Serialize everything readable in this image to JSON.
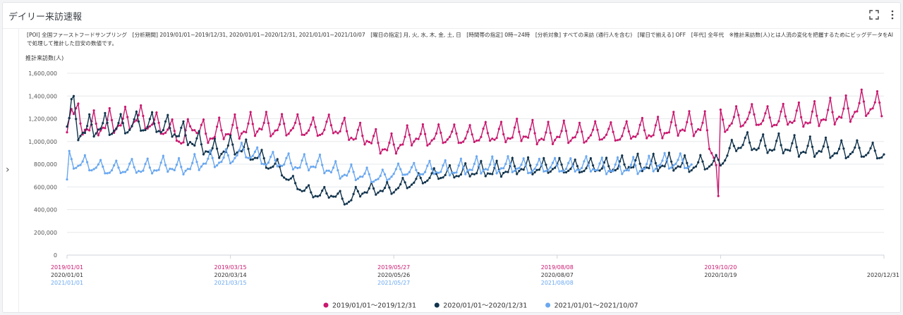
{
  "widget": {
    "title": "デイリー来訪速報",
    "description": "[POI] 全国ファーストフードサンプリング　[分析期間] 2019/01/01~2019/12/31, 2020/01/01~2020/12/31, 2021/01/01~2021/10/07　[曜日の指定] 月, 火, 水, 木, 金, 土, 日　[時間帯の指定] 0時~24時　[分析対象] すべての来訪 (通行人を含む)　[曜日で揃える] OFF　[年代] 全年代　※推計来訪数(人)とは人流の変化を把握するためにビッグデータをAIで処理して推計した目安の数値です。",
    "icons": {
      "expand": "expand-icon",
      "menu": "more-vertical-icon",
      "sidebar": "chevron-right-icon"
    }
  },
  "chart_data": {
    "type": "line",
    "ylabel": "推計来訪数(人)",
    "ylim": [
      0,
      1600000
    ],
    "yticks": [
      0,
      200000,
      400000,
      600000,
      800000,
      1000000,
      1200000,
      1400000,
      1600000
    ],
    "ytick_labels": [
      "0",
      "200,000",
      "400,000",
      "600,000",
      "800,000",
      "1,000,000",
      "1,200,000",
      "1,400,000",
      "1,600,000"
    ],
    "xlim": [
      0,
      365
    ],
    "x_ticks": [
      {
        "day": 0,
        "labels": [
          "2019/01/01",
          "2020/01/01",
          "2021/01/01"
        ]
      },
      {
        "day": 73,
        "labels": [
          "2019/03/15",
          "2020/03/14",
          "2021/03/15"
        ]
      },
      {
        "day": 146,
        "labels": [
          "2019/05/27",
          "2020/05/26",
          "2021/05/27"
        ]
      },
      {
        "day": 219,
        "labels": [
          "2019/08/08",
          "2020/08/07",
          "2021/08/08"
        ]
      },
      {
        "day": 292,
        "labels": [
          "2019/10/20",
          "2020/10/19",
          ""
        ]
      },
      {
        "day": 365,
        "labels": [
          "",
          "2020/12/31",
          ""
        ]
      }
    ],
    "weekly_pattern": [
      -0.06,
      -0.04,
      -0.03,
      -0.02,
      0.04,
      0.11,
      0.02
    ],
    "series": [
      {
        "name": "2019/01/01～2019/12/31",
        "color": "#c8186f",
        "n_days": 365,
        "knots": [
          [
            0,
            1140000
          ],
          [
            2,
            1320000
          ],
          [
            6,
            1150000
          ],
          [
            15,
            1130000
          ],
          [
            30,
            1200000
          ],
          [
            45,
            1120000
          ],
          [
            52,
            1000000
          ],
          [
            56,
            1160000
          ],
          [
            63,
            1050000
          ],
          [
            75,
            1110000
          ],
          [
            90,
            1130000
          ],
          [
            100,
            1120000
          ],
          [
            110,
            1110000
          ],
          [
            120,
            1120000
          ],
          [
            135,
            1020000
          ],
          [
            140,
            960000
          ],
          [
            146,
            960000
          ],
          [
            155,
            1040000
          ],
          [
            170,
            1040000
          ],
          [
            185,
            1050000
          ],
          [
            200,
            1070000
          ],
          [
            215,
            1050000
          ],
          [
            230,
            1060000
          ],
          [
            250,
            1070000
          ],
          [
            265,
            1100000
          ],
          [
            280,
            1140000
          ],
          [
            285,
            1130000
          ],
          [
            290,
            800000
          ],
          [
            291,
            520000
          ],
          [
            292,
            1150000
          ],
          [
            300,
            1200000
          ],
          [
            320,
            1200000
          ],
          [
            340,
            1220000
          ],
          [
            355,
            1300000
          ],
          [
            365,
            1310000
          ]
        ]
      },
      {
        "name": "2020/01/01～2020/12/31",
        "color": "#12344d",
        "n_days": 366,
        "knots": [
          [
            0,
            1150000
          ],
          [
            2,
            1330000
          ],
          [
            5,
            1100000
          ],
          [
            20,
            1130000
          ],
          [
            40,
            1150000
          ],
          [
            55,
            1030000
          ],
          [
            65,
            900000
          ],
          [
            75,
            960000
          ],
          [
            85,
            860000
          ],
          [
            95,
            760000
          ],
          [
            100,
            640000
          ],
          [
            110,
            540000
          ],
          [
            120,
            530000
          ],
          [
            125,
            470000
          ],
          [
            130,
            550000
          ],
          [
            140,
            580000
          ],
          [
            146,
            580000
          ],
          [
            160,
            680000
          ],
          [
            175,
            730000
          ],
          [
            190,
            740000
          ],
          [
            205,
            770000
          ],
          [
            220,
            770000
          ],
          [
            235,
            770000
          ],
          [
            250,
            790000
          ],
          [
            265,
            800000
          ],
          [
            280,
            790000
          ],
          [
            290,
            800000
          ],
          [
            300,
            980000
          ],
          [
            320,
            950000
          ],
          [
            340,
            920000
          ],
          [
            366,
            900000
          ]
        ]
      },
      {
        "name": "2021/01/01～2021/10/07",
        "color": "#6aa8f0",
        "n_days": 280,
        "knots": [
          [
            0,
            650000
          ],
          [
            1,
            830000
          ],
          [
            15,
            760000
          ],
          [
            30,
            760000
          ],
          [
            45,
            780000
          ],
          [
            50,
            760000
          ],
          [
            60,
            810000
          ],
          [
            70,
            840000
          ],
          [
            75,
            880000
          ],
          [
            80,
            900000
          ],
          [
            90,
            830000
          ],
          [
            100,
            800000
          ],
          [
            110,
            800000
          ],
          [
            120,
            740000
          ],
          [
            130,
            700000
          ],
          [
            140,
            680000
          ],
          [
            150,
            740000
          ],
          [
            170,
            750000
          ],
          [
            190,
            780000
          ],
          [
            210,
            770000
          ],
          [
            230,
            780000
          ],
          [
            250,
            760000
          ],
          [
            265,
            800000
          ],
          [
            275,
            820000
          ],
          [
            280,
            800000
          ]
        ]
      }
    ]
  }
}
